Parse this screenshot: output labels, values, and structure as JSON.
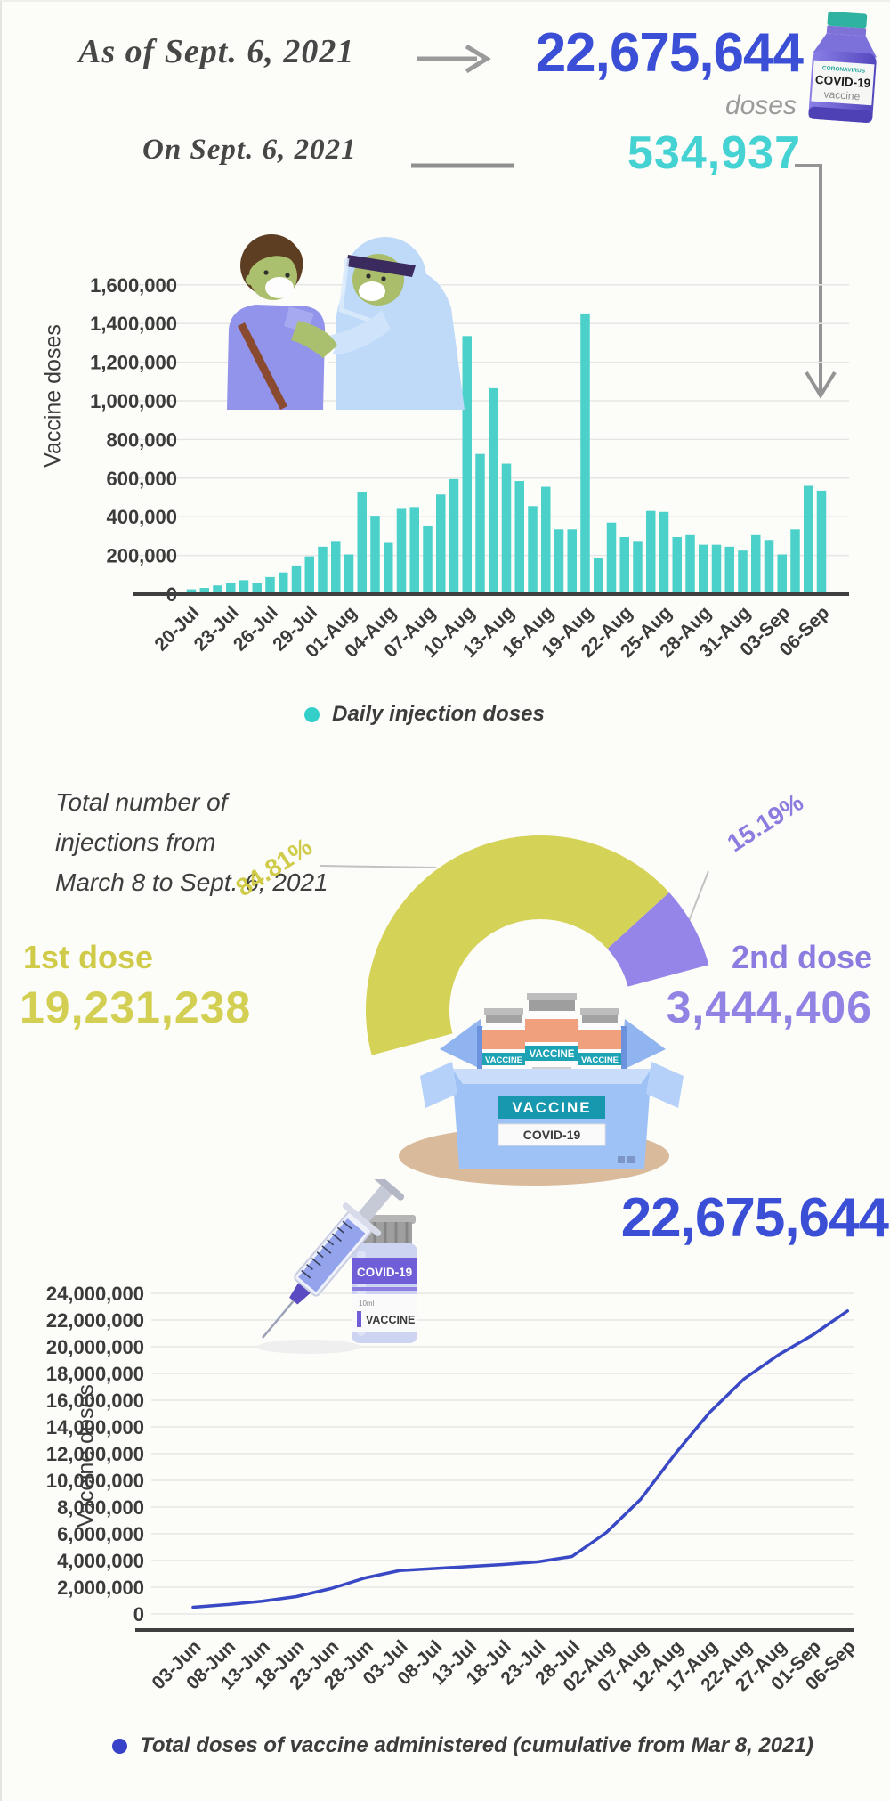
{
  "header": {
    "as_of_label": "As of Sept. 6, 2021",
    "total_value": "22,675,644",
    "doses_label": "doses",
    "on_date_label": "On Sept. 6, 2021",
    "daily_value": "534,937"
  },
  "gauge_section": {
    "title_line1": "Total number of",
    "title_line2": "injections from",
    "title_line3": "March 8 to  Sept. 6, 2021"
  },
  "illustrations": {
    "top_vial": {
      "line1": "CORONAVIRUS",
      "line2": "COVID-19",
      "line3": "vaccine"
    },
    "box": {
      "vaccine_label": "VACCINE",
      "covid_label": "COVID-19",
      "vial_label": "VACCINE"
    },
    "syringe_vial": {
      "title": "COVID-19",
      "ml": "10ml",
      "label": "VACCINE"
    }
  },
  "colors": {
    "accent_blue": "#3a4ed6",
    "accent_teal": "#45d2d3",
    "bar_teal": "#4bd0ca",
    "gauge_yellow": "#d5d258",
    "gauge_purple": "#9585e8",
    "line_blue": "#3948c4",
    "arrow_gray": "#949494",
    "gridline": "#e6e6e6",
    "axis_dark": "#3f3f3f"
  },
  "chart_data": [
    {
      "type": "bar",
      "title": "Daily injection doses",
      "ylabel": "Vaccine doses",
      "ylim": [
        0,
        1600000
      ],
      "ytick_step": 200000,
      "xtick_every": 3,
      "grid": true,
      "legend": "Daily injection doses",
      "legend_position": "bottom-center",
      "bar_color": "#4bd0ca",
      "legend_dot_color": "#35cfc9",
      "categories": [
        "20-Jul",
        "21-Jul",
        "22-Jul",
        "23-Jul",
        "24-Jul",
        "25-Jul",
        "26-Jul",
        "27-Jul",
        "28-Jul",
        "29-Jul",
        "30-Jul",
        "31-Jul",
        "01-Aug",
        "02-Aug",
        "03-Aug",
        "04-Aug",
        "05-Aug",
        "06-Aug",
        "07-Aug",
        "08-Aug",
        "09-Aug",
        "10-Aug",
        "11-Aug",
        "12-Aug",
        "13-Aug",
        "14-Aug",
        "15-Aug",
        "16-Aug",
        "17-Aug",
        "18-Aug",
        "19-Aug",
        "20-Aug",
        "21-Aug",
        "22-Aug",
        "23-Aug",
        "24-Aug",
        "25-Aug",
        "26-Aug",
        "27-Aug",
        "28-Aug",
        "29-Aug",
        "30-Aug",
        "31-Aug",
        "01-Sep",
        "02-Sep",
        "03-Sep",
        "04-Sep",
        "05-Sep",
        "06-Sep"
      ],
      "values": [
        25000,
        32000,
        45000,
        60000,
        72000,
        58000,
        88000,
        112000,
        148000,
        195000,
        245000,
        275000,
        205000,
        530000,
        405000,
        265000,
        445000,
        450000,
        355000,
        515000,
        595000,
        1335000,
        725000,
        1065000,
        675000,
        585000,
        455000,
        555000,
        335000,
        335000,
        1452000,
        185000,
        370000,
        295000,
        275000,
        430000,
        425000,
        295000,
        305000,
        255000,
        255000,
        245000,
        225000,
        305000,
        280000,
        205000,
        335000,
        560000,
        534937
      ],
      "callout_value": "534,937",
      "callout_date": "06-Sep"
    },
    {
      "type": "pie",
      "style": "half-donut-gauge",
      "title": "Total number of injections from March 8 to Sept. 6, 2021",
      "slices": [
        {
          "label": "1st dose",
          "value": 19231238,
          "value_display": "19,231,238",
          "pct": "84.81%",
          "fraction": 0.8481,
          "color": "#d5d258"
        },
        {
          "label": "2nd dose",
          "value": 3444406,
          "value_display": "3,444,406",
          "pct": "15.19%",
          "fraction": 0.1519,
          "color": "#9585e8"
        }
      ]
    },
    {
      "type": "line",
      "ylabel": "Vaccine doses",
      "ylim": [
        0,
        24000000
      ],
      "ytick_step": 2000000,
      "grid": true,
      "legend": "Total doses of vaccine administered (cumulative from Mar 8, 2021)",
      "legend_position": "bottom-center",
      "line_color": "#3948c4",
      "legend_dot_color": "#3742c8",
      "end_label": "22,675,644",
      "x": [
        "03-Jun",
        "08-Jun",
        "13-Jun",
        "18-Jun",
        "23-Jun",
        "28-Jun",
        "03-Jul",
        "08-Jul",
        "13-Jul",
        "18-Jul",
        "23-Jul",
        "28-Jul",
        "02-Aug",
        "07-Aug",
        "12-Aug",
        "17-Aug",
        "22-Aug",
        "27-Aug",
        "01-Sep",
        "06-Sep"
      ],
      "values": [
        500000,
        700000,
        950000,
        1300000,
        1900000,
        2700000,
        3250000,
        3400000,
        3550000,
        3700000,
        3900000,
        4300000,
        6100000,
        8600000,
        12000000,
        15100000,
        17600000,
        19400000,
        20900000,
        22675644
      ]
    }
  ]
}
